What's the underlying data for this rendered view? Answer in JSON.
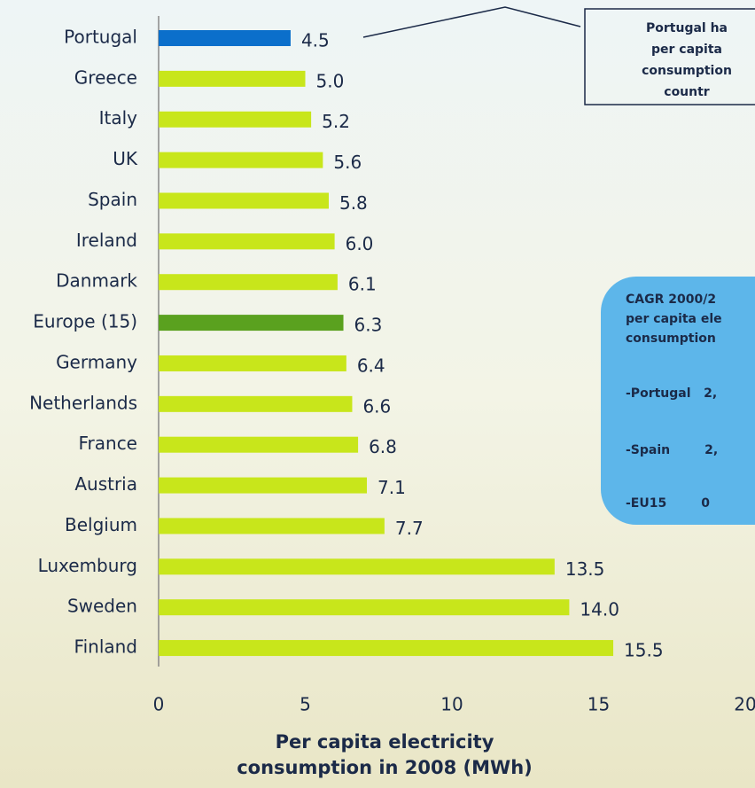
{
  "chart_data": {
    "type": "barh",
    "categories": [
      "Portugal",
      "Greece",
      "Italy",
      "UK",
      "Spain",
      "Ireland",
      "Danmark",
      "Europe (15)",
      "Germany",
      "Netherlands",
      "France",
      "Austria",
      "Belgium",
      "Luxemburg",
      "Sweden",
      "Finland"
    ],
    "values": [
      4.5,
      5.0,
      5.2,
      5.6,
      5.8,
      6.0,
      6.1,
      6.3,
      6.4,
      6.6,
      6.8,
      7.1,
      7.7,
      13.5,
      14.0,
      15.5
    ],
    "value_labels": [
      "4.5",
      "5.0",
      "5.2",
      "5.6",
      "5.8",
      "6.0",
      "6.1",
      "6.3",
      "6.4",
      "6.6",
      "6.8",
      "7.1",
      "7.7",
      "13.5",
      "14.0",
      "15.5"
    ],
    "colors": [
      "#0b6fcb",
      "#c8e61b",
      "#c8e61b",
      "#c8e61b",
      "#c8e61b",
      "#c8e61b",
      "#c8e61b",
      "#5aa11f",
      "#c8e61b",
      "#c8e61b",
      "#c8e61b",
      "#c8e61b",
      "#c8e61b",
      "#c8e61b",
      "#c8e61b",
      "#c8e61b"
    ],
    "xlim": [
      0,
      20
    ],
    "xticks": [
      0,
      5,
      10,
      15,
      20
    ],
    "xlabel": [
      "Per capita electricity",
      "consumption in 2008 (MWh)"
    ],
    "annotations": [
      {
        "lines": [
          "Portugal ha",
          "per capita",
          "consumption",
          "countr"
        ]
      },
      {
        "lines": [
          "CAGR 2000/2",
          "per capita ele",
          "consumption",
          "-Portugal   2,",
          "-Spain        2,",
          "-EU15        0"
        ]
      }
    ]
  }
}
